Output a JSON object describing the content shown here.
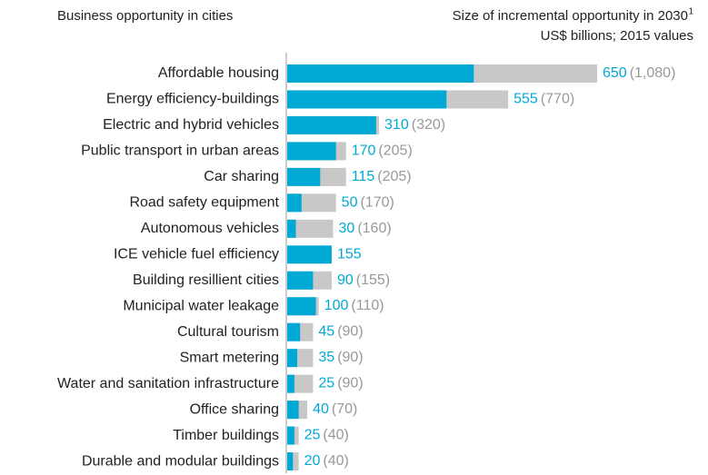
{
  "chart_data": {
    "type": "bar",
    "orientation": "horizontal",
    "overlay": true,
    "title": "Business opportunity in cities",
    "subtitle": "Size of incremental opportunity in 2030",
    "subtitle_footnote": "1",
    "unit_note": "US$ billions; 2015 values",
    "categories": [
      "Affordable housing",
      "Energy efficiency-buildings",
      "Electric and hybrid vehicles",
      "Public transport in urban areas",
      "Car sharing",
      "Road safety equipment",
      "Autonomous vehicles",
      "ICE vehicle fuel efficiency",
      "Building resillient cities",
      "Municipal water leakage",
      "Cultural tourism",
      "Smart metering",
      "Water and sanitation infrastructure",
      "Office sharing",
      "Timber buildings",
      "Durable and modular buildings"
    ],
    "series": [
      {
        "name": "Low",
        "color": "#00a9d4",
        "label_color": "#00a9d4",
        "values": [
          650,
          555,
          310,
          170,
          115,
          50,
          30,
          155,
          90,
          100,
          45,
          35,
          25,
          40,
          25,
          20
        ]
      },
      {
        "name": "High",
        "color": "#c8c8c8",
        "label_color": "#999999",
        "values": [
          1080,
          770,
          320,
          205,
          205,
          170,
          160,
          null,
          155,
          110,
          90,
          90,
          90,
          70,
          40,
          40
        ],
        "value_labels": [
          "(1,080)",
          "(770)",
          "(320)",
          "(205)",
          "(205)",
          "(170)",
          "(160)",
          null,
          "(155)",
          "(110)",
          "(90)",
          "(90)",
          "(90)",
          "(70)",
          "(40)",
          "(40)"
        ]
      }
    ]
  }
}
